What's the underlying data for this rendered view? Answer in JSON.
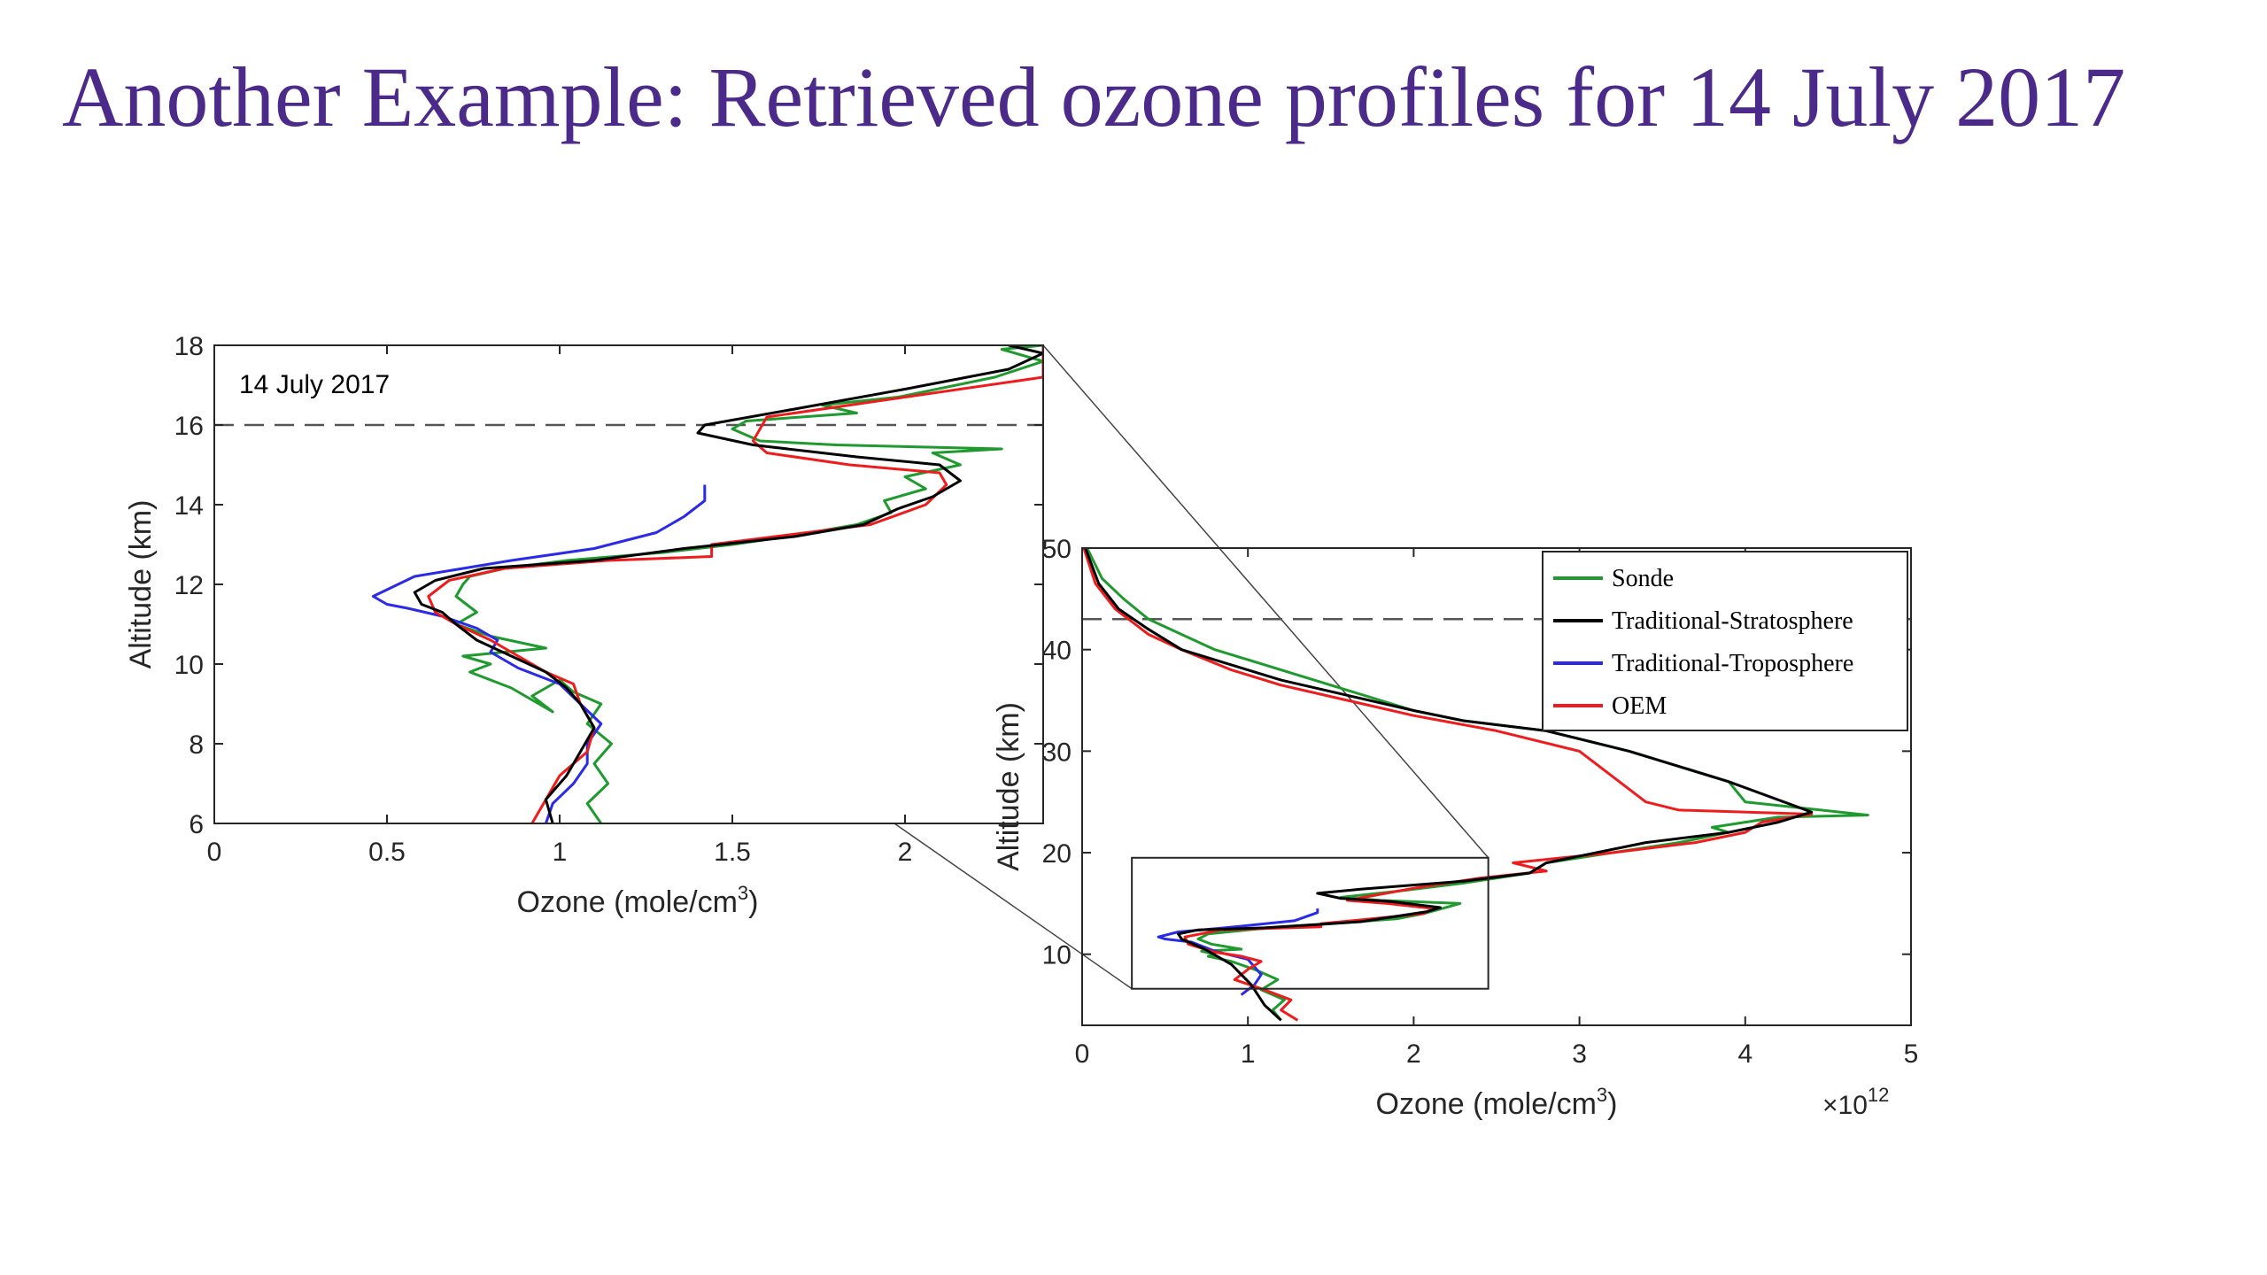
{
  "slide": {
    "title": "Another Example: Retrieved ozone profiles for 14 July 2017",
    "title_color": "#4b2a8a"
  },
  "series_colors": {
    "Sonde": "#1f9a2e",
    "Traditional-Stratosphere": "#000000",
    "Traditional-Troposphere": "#2a2ae8",
    "OEM": "#ee1c1c"
  },
  "chart_data": [
    {
      "type": "line",
      "panel": "zoom",
      "annotation": "14 July 2017",
      "xlabel": "Ozone (mole/cm",
      "xlabel_sup": "3",
      "xlabel_end": ")",
      "ylabel": "Altitude (km)",
      "xlim": [
        0,
        2.4
      ],
      "ylim": [
        6,
        18
      ],
      "xticks": [
        "0",
        "0.5",
        "1",
        "1.5",
        "2"
      ],
      "yticks": [
        "6",
        "8",
        "10",
        "12",
        "14",
        "16",
        "18"
      ],
      "dashed_line_altitude": 16,
      "series": [
        {
          "name": "Sonde",
          "x": [
            1.12,
            1.08,
            1.14,
            1.1,
            1.15,
            1.08,
            1.12,
            1.04,
            1.0,
            0.92,
            0.98,
            0.86,
            0.74,
            0.8,
            0.72,
            0.96,
            0.8,
            0.7,
            0.76,
            0.7,
            0.72,
            0.74,
            0.84,
            1.02,
            1.3,
            1.5,
            1.66,
            1.86,
            1.96,
            1.94,
            2.06,
            2.0,
            2.16,
            2.08,
            2.28,
            1.8,
            1.58,
            1.5,
            1.54,
            1.86,
            1.76,
            1.98,
            2.26,
            2.4,
            2.28,
            2.4
          ],
          "y": [
            6.0,
            6.5,
            7.0,
            7.5,
            8.0,
            8.5,
            9.0,
            9.3,
            9.6,
            9.2,
            8.8,
            9.4,
            9.8,
            10.0,
            10.2,
            10.4,
            10.7,
            11.0,
            11.3,
            11.7,
            12.0,
            12.2,
            12.4,
            12.6,
            12.8,
            13.0,
            13.2,
            13.5,
            13.8,
            14.1,
            14.4,
            14.7,
            15.0,
            15.3,
            15.4,
            15.5,
            15.6,
            15.9,
            16.1,
            16.3,
            16.5,
            16.7,
            17.2,
            17.6,
            17.9,
            18.0
          ]
        },
        {
          "name": "Traditional-Stratosphere",
          "x": [
            0.98,
            0.96,
            1.02,
            1.06,
            1.1,
            1.06,
            1.02,
            0.96,
            0.86,
            0.76,
            0.7,
            0.66,
            0.6,
            0.58,
            0.64,
            0.78,
            1.1,
            1.36,
            1.68,
            1.88,
            1.98,
            2.08,
            2.16,
            2.1,
            1.86,
            1.56,
            1.4,
            1.42,
            1.68,
            2.0,
            2.3,
            2.4,
            2.3
          ],
          "y": [
            6.0,
            6.6,
            7.2,
            7.8,
            8.4,
            9.0,
            9.4,
            9.8,
            10.2,
            10.6,
            11.0,
            11.3,
            11.5,
            11.8,
            12.1,
            12.4,
            12.6,
            12.9,
            13.2,
            13.5,
            13.9,
            14.2,
            14.6,
            15.0,
            15.2,
            15.5,
            15.8,
            16.0,
            16.4,
            16.9,
            17.4,
            17.8,
            18.0
          ]
        },
        {
          "name": "Traditional-Troposphere",
          "x": [
            0.96,
            0.98,
            1.04,
            1.08,
            1.08,
            1.12,
            1.06,
            1.0,
            0.88,
            0.8,
            0.82,
            0.76,
            0.66,
            0.56,
            0.5,
            0.46,
            0.58,
            0.86,
            1.1,
            1.28,
            1.36,
            1.42,
            1.42
          ],
          "y": [
            6.0,
            6.5,
            7.0,
            7.5,
            8.0,
            8.5,
            9.0,
            9.5,
            9.9,
            10.3,
            10.6,
            10.9,
            11.2,
            11.4,
            11.5,
            11.7,
            12.2,
            12.6,
            12.9,
            13.3,
            13.7,
            14.1,
            14.5
          ]
        },
        {
          "name": "OEM",
          "x": [
            0.92,
            0.96,
            1.0,
            1.08,
            1.1,
            1.06,
            1.04,
            0.96,
            0.88,
            0.8,
            0.7,
            0.64,
            0.62,
            0.68,
            0.84,
            1.14,
            1.44,
            1.44,
            1.9,
            2.06,
            2.12,
            2.1,
            1.84,
            1.6,
            1.56,
            1.6,
            2.4,
            2.4
          ],
          "y": [
            6.0,
            6.6,
            7.2,
            7.8,
            8.4,
            9.0,
            9.5,
            9.8,
            10.2,
            10.6,
            11.0,
            11.3,
            11.7,
            12.1,
            12.4,
            12.6,
            12.7,
            13.0,
            13.5,
            14.0,
            14.5,
            14.8,
            15.0,
            15.3,
            15.6,
            16.2,
            17.2,
            18.0
          ]
        }
      ]
    },
    {
      "type": "line",
      "panel": "full",
      "xlabel": "Ozone (mole/cm",
      "xlabel_sup": "3",
      "xlabel_end": ")",
      "x_multiplier": "×10",
      "x_multiplier_exp": "12",
      "ylabel": "Altitude (km)",
      "xlim": [
        0,
        5
      ],
      "ylim": [
        3,
        50
      ],
      "xticks": [
        "0",
        "1",
        "2",
        "3",
        "4",
        "5"
      ],
      "yticks": [
        "10",
        "20",
        "30",
        "40",
        "50"
      ],
      "dashed_line_altitude": 43,
      "legend_position": "top-right",
      "legend": [
        "Sonde",
        "Traditional-Stratosphere",
        "Traditional-Troposphere",
        "OEM"
      ],
      "series": [
        {
          "name": "Sonde",
          "x": [
            1.2,
            1.15,
            1.22,
            1.08,
            1.18,
            1.04,
            0.9,
            0.76,
            0.8,
            0.72,
            0.96,
            0.78,
            0.7,
            0.76,
            1.06,
            1.5,
            1.9,
            2.06,
            2.28,
            1.8,
            1.56,
            1.9,
            2.3,
            2.7,
            2.8,
            3.2,
            3.6,
            3.9,
            3.8,
            4.0,
            4.2,
            4.74,
            4.0,
            3.9,
            3.3,
            2.8,
            2.3,
            2.0,
            1.8,
            1.6,
            1.4,
            1.2,
            1.0,
            0.8,
            0.6,
            0.4,
            0.25,
            0.12,
            0.03
          ],
          "y": [
            3.5,
            4.5,
            5.5,
            6.5,
            7.5,
            8.5,
            9.3,
            9.8,
            10.0,
            10.3,
            10.5,
            11.0,
            11.5,
            12.0,
            12.5,
            13.0,
            13.5,
            14.0,
            15.0,
            15.3,
            15.6,
            16.2,
            17.0,
            18.0,
            19.0,
            20.0,
            21.0,
            22.0,
            22.5,
            23.0,
            23.5,
            23.7,
            25.0,
            27.0,
            30.0,
            32.0,
            33.0,
            34.0,
            35.0,
            36.0,
            37.0,
            38.0,
            39.0,
            40.0,
            41.5,
            43.0,
            45.0,
            47.0,
            50.0
          ]
        },
        {
          "name": "Traditional-Stratosphere",
          "x": [
            1.2,
            1.1,
            1.02,
            0.9,
            0.74,
            0.6,
            0.58,
            0.7,
            1.1,
            1.68,
            2.08,
            2.16,
            1.86,
            1.56,
            1.42,
            1.68,
            2.3,
            2.7,
            2.8,
            3.4,
            3.9,
            4.2,
            4.4,
            3.9,
            3.3,
            2.8,
            2.3,
            2.0,
            1.6,
            1.2,
            0.9,
            0.6,
            0.4,
            0.22,
            0.1,
            0.02
          ],
          "y": [
            3.5,
            5.0,
            7.0,
            9.0,
            10.5,
            11.5,
            12.0,
            12.4,
            12.6,
            13.2,
            14.2,
            14.6,
            15.2,
            15.5,
            16.0,
            16.4,
            17.2,
            18.0,
            19.0,
            21.0,
            22.0,
            23.0,
            24.0,
            27.0,
            30.0,
            32.0,
            33.0,
            34.0,
            35.5,
            37.0,
            38.5,
            40.0,
            42.0,
            44.0,
            46.5,
            50.0
          ]
        },
        {
          "name": "Traditional-Troposphere",
          "x": [
            0.96,
            1.04,
            1.08,
            1.0,
            0.8,
            0.66,
            0.5,
            0.46,
            0.58,
            0.86,
            1.28,
            1.42,
            1.42
          ],
          "y": [
            6.0,
            7.0,
            8.0,
            9.5,
            10.3,
            11.2,
            11.5,
            11.7,
            12.2,
            12.6,
            13.3,
            14.1,
            14.5
          ]
        },
        {
          "name": "OEM",
          "x": [
            1.3,
            1.2,
            1.26,
            1.1,
            0.92,
            1.0,
            1.08,
            0.96,
            0.8,
            0.64,
            0.62,
            0.84,
            1.44,
            1.44,
            2.06,
            2.12,
            1.84,
            1.6,
            2.0,
            2.4,
            2.8,
            2.6,
            3.2,
            3.7,
            4.0,
            4.1,
            4.4,
            3.6,
            3.4,
            3.0,
            2.5,
            2.0,
            1.6,
            1.2,
            0.9,
            0.6,
            0.4,
            0.2,
            0.08,
            0.01
          ],
          "y": [
            3.5,
            4.5,
            5.5,
            6.5,
            7.5,
            8.5,
            9.3,
            9.8,
            10.2,
            11.0,
            11.7,
            12.4,
            12.7,
            13.0,
            14.0,
            14.5,
            15.0,
            15.3,
            16.5,
            17.5,
            18.2,
            19.0,
            20.0,
            21.0,
            22.0,
            23.0,
            23.8,
            24.2,
            25.0,
            30.0,
            32.0,
            33.5,
            35.0,
            36.5,
            38.0,
            40.0,
            41.5,
            44.0,
            46.5,
            50.0
          ]
        }
      ]
    }
  ]
}
